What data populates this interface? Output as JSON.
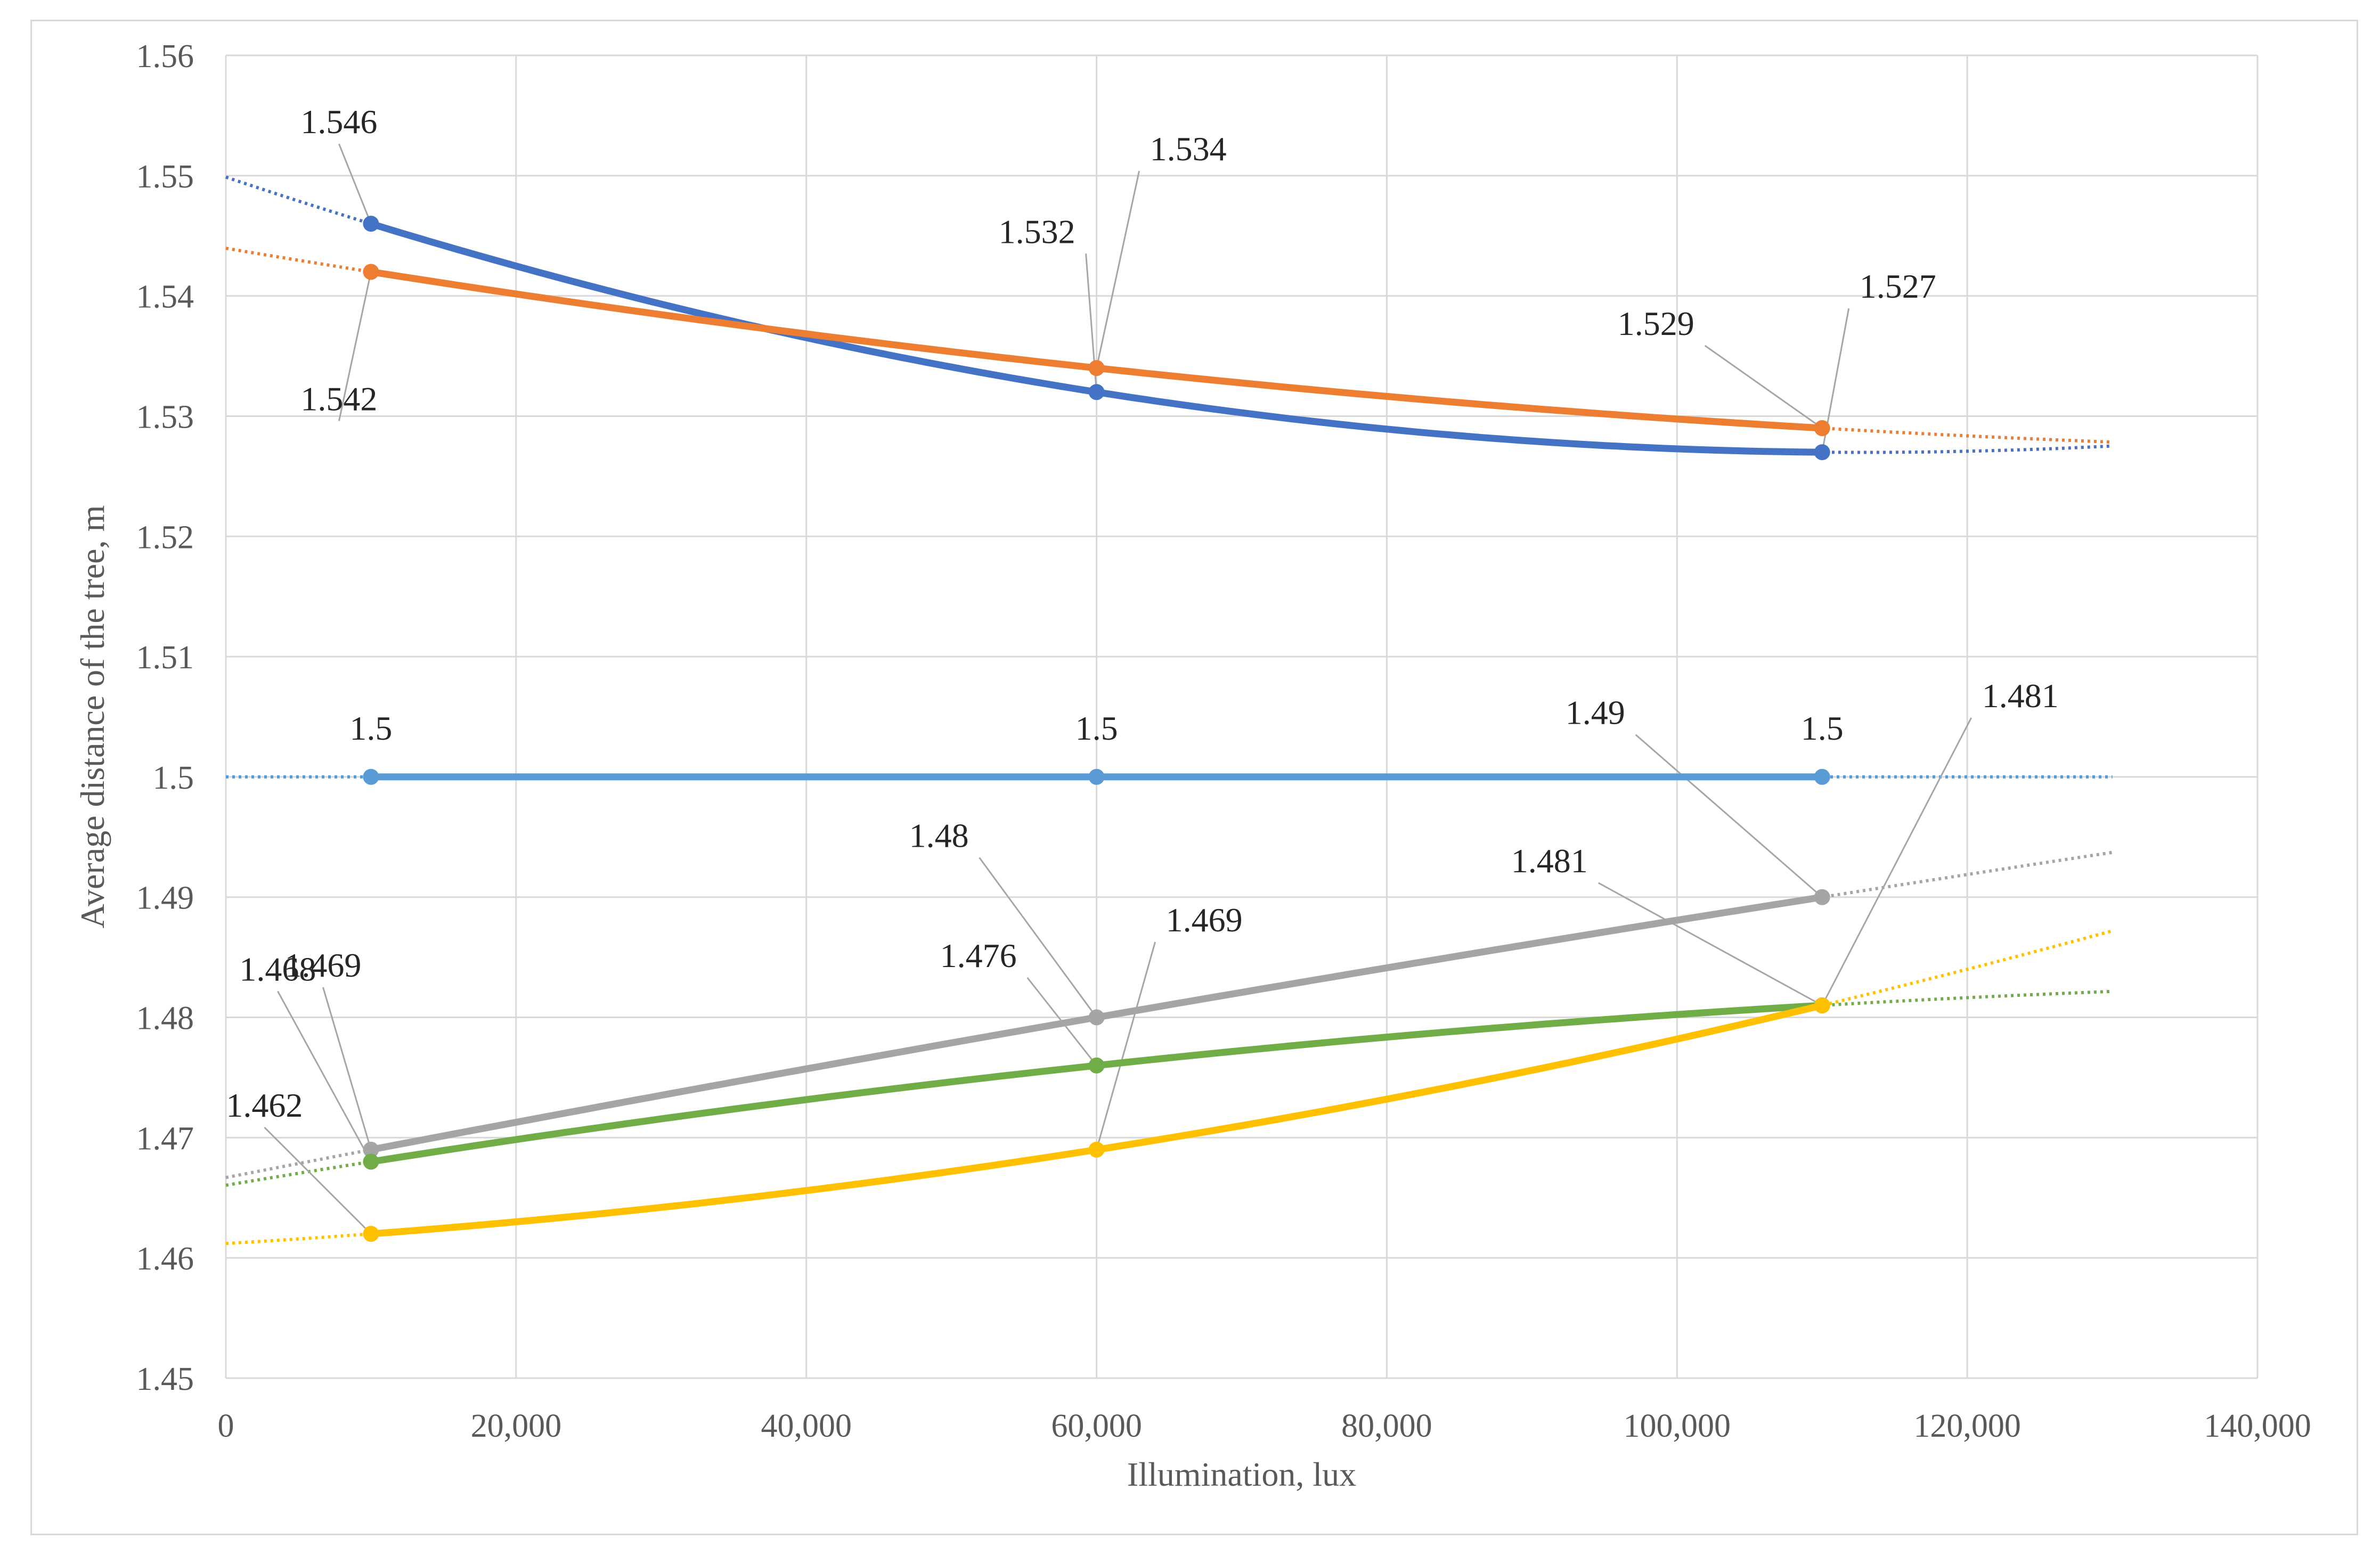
{
  "chart_data": {
    "type": "line",
    "title": "",
    "xlabel": "Illumination,  lux",
    "ylabel": "Average  distance of the tree, m",
    "xlim": [
      0,
      140000
    ],
    "ylim": [
      1.45,
      1.56
    ],
    "x_ticks": [
      0,
      20000,
      40000,
      60000,
      80000,
      100000,
      120000,
      140000
    ],
    "x_tick_labels": [
      "0",
      "20,000",
      "40,000",
      "60,000",
      "80,000",
      "100,000",
      "120,000",
      "140,000"
    ],
    "y_ticks": [
      1.45,
      1.46,
      1.47,
      1.48,
      1.49,
      1.5,
      1.51,
      1.52,
      1.53,
      1.54,
      1.55,
      1.56
    ],
    "y_tick_labels": [
      "1.45",
      "1.46",
      "1.47",
      "1.48",
      "1.49",
      "1.5",
      "1.51",
      "1.52",
      "1.53",
      "1.54",
      "1.55",
      "1.56"
    ],
    "grid": true,
    "legend": "none",
    "trendline_x_range": [
      0,
      130000
    ],
    "x": [
      10000,
      60000,
      110000
    ],
    "series": [
      {
        "name": "series-dark-blue",
        "color": "#4472c4",
        "values": [
          1.546,
          1.532,
          1.527
        ],
        "labels": [
          "1.546",
          "1.532",
          "1.527"
        ],
        "trend_at_130000": 1.5275
      },
      {
        "name": "series-orange",
        "color": "#ed7d31",
        "values": [
          1.542,
          1.534,
          1.529
        ],
        "labels": [
          "1.542",
          "1.534",
          "1.529"
        ],
        "trend_at_130000": 1.5278
      },
      {
        "name": "series-light-blue",
        "color": "#5b9bd5",
        "values": [
          1.5,
          1.5,
          1.5
        ],
        "labels": [
          "1.5",
          "1.5",
          "1.5"
        ],
        "trend_at_130000": 1.5
      },
      {
        "name": "series-gray",
        "color": "#a5a5a5",
        "values": [
          1.469,
          1.48,
          1.49
        ],
        "labels": [
          "1.469",
          "1.48",
          "1.49"
        ],
        "trend_at_130000": 1.4938
      },
      {
        "name": "series-green",
        "color": "#70ad47",
        "values": [
          1.468,
          1.476,
          1.481
        ],
        "labels": [
          "1.468",
          "1.476",
          "1.481"
        ],
        "trend_at_130000": 1.4822
      },
      {
        "name": "series-yellow",
        "color": "#ffc000",
        "values": [
          1.462,
          1.469,
          1.481
        ],
        "labels": [
          "1.462",
          "1.469",
          "1.481"
        ],
        "trend_at_130000": 1.487
      }
    ]
  }
}
